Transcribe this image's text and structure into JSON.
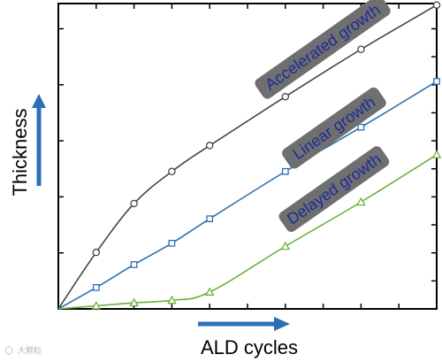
{
  "chart_data": {
    "type": "line",
    "title": "",
    "xlabel": "ALD cycles",
    "ylabel": "Thickness",
    "xlim": [
      0,
      10
    ],
    "ylim": [
      0,
      10
    ],
    "grid": false,
    "x_ticks_shown": false,
    "y_ticks_shown": false,
    "series": [
      {
        "name": "Accelerated growth",
        "color": "#454545",
        "marker": "circle",
        "x": [
          1,
          2,
          3,
          4,
          6,
          8,
          10
        ],
        "y": [
          1.85,
          3.45,
          4.5,
          5.35,
          6.95,
          8.5,
          9.95
        ],
        "annotation_anchor_x": 7.0,
        "annotation_anchor_y": 8.55
      },
      {
        "name": "Linear growth",
        "color": "#2b70b2",
        "marker": "square",
        "x": [
          1,
          2,
          3,
          4,
          6,
          8,
          10
        ],
        "y": [
          0.7,
          1.45,
          2.15,
          2.95,
          4.5,
          5.95,
          7.45
        ],
        "annotation_anchor_x": 7.3,
        "annotation_anchor_y": 5.9
      },
      {
        "name": "Delayed growth",
        "color": "#6db23b",
        "marker": "triangle",
        "x": [
          0,
          1,
          2,
          3,
          4,
          6,
          8,
          10
        ],
        "y": [
          0.0,
          0.1,
          0.2,
          0.28,
          0.55,
          2.05,
          3.5,
          5.05
        ],
        "annotation_anchor_x": 7.3,
        "annotation_anchor_y": 3.9
      }
    ],
    "arrows": {
      "y_arrow_color": "#2b70b2",
      "x_arrow_color": "#2b70b2"
    }
  },
  "banner_style": {
    "fill": "#6f6f6f",
    "text_color": "#1c2b9a"
  },
  "watermark": {
    "text": "大颗粒"
  }
}
